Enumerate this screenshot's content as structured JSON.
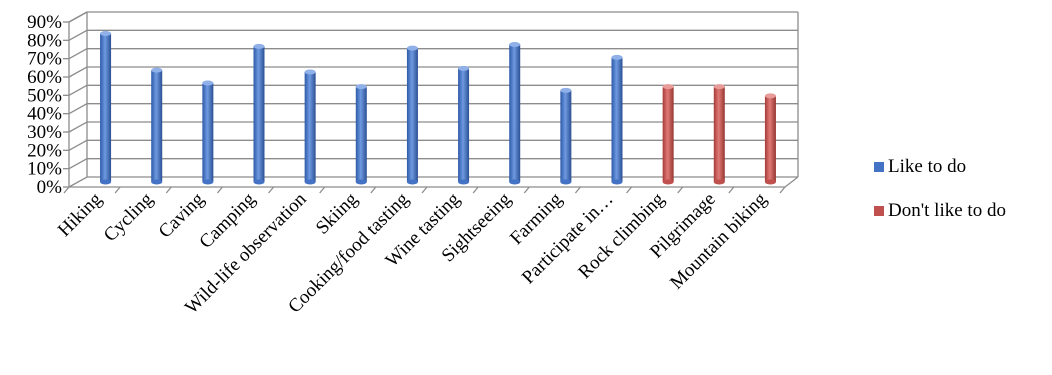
{
  "chart_data": {
    "type": "bar",
    "title": "",
    "xlabel": "",
    "ylabel": "",
    "categories": [
      "Hiking",
      "Cycling",
      "Caving",
      "Camping",
      "Wild-life observation",
      "Skiing",
      "Cooking/food tasting",
      "Wine tasting",
      "Sightseeing",
      "Farming",
      "Participate in…",
      "Rock climbing",
      "Pilgrimage",
      "Mountain biking"
    ],
    "series": [
      {
        "name": "Like to do",
        "color": "#4472C4",
        "values": [
          81,
          61,
          54,
          74,
          60,
          52,
          73,
          62,
          75,
          50,
          68,
          null,
          null,
          null
        ]
      },
      {
        "name": "Don't like to do",
        "color": "#C0504D",
        "values": [
          null,
          null,
          null,
          null,
          null,
          null,
          null,
          null,
          null,
          null,
          null,
          52,
          52,
          47
        ]
      }
    ],
    "ylim": [
      0,
      90
    ],
    "yticks": [
      "0%",
      "10%",
      "20%",
      "30%",
      "40%",
      "50%",
      "60%",
      "70%",
      "80%",
      "90%"
    ],
    "grid": true,
    "legend_position": "right"
  }
}
